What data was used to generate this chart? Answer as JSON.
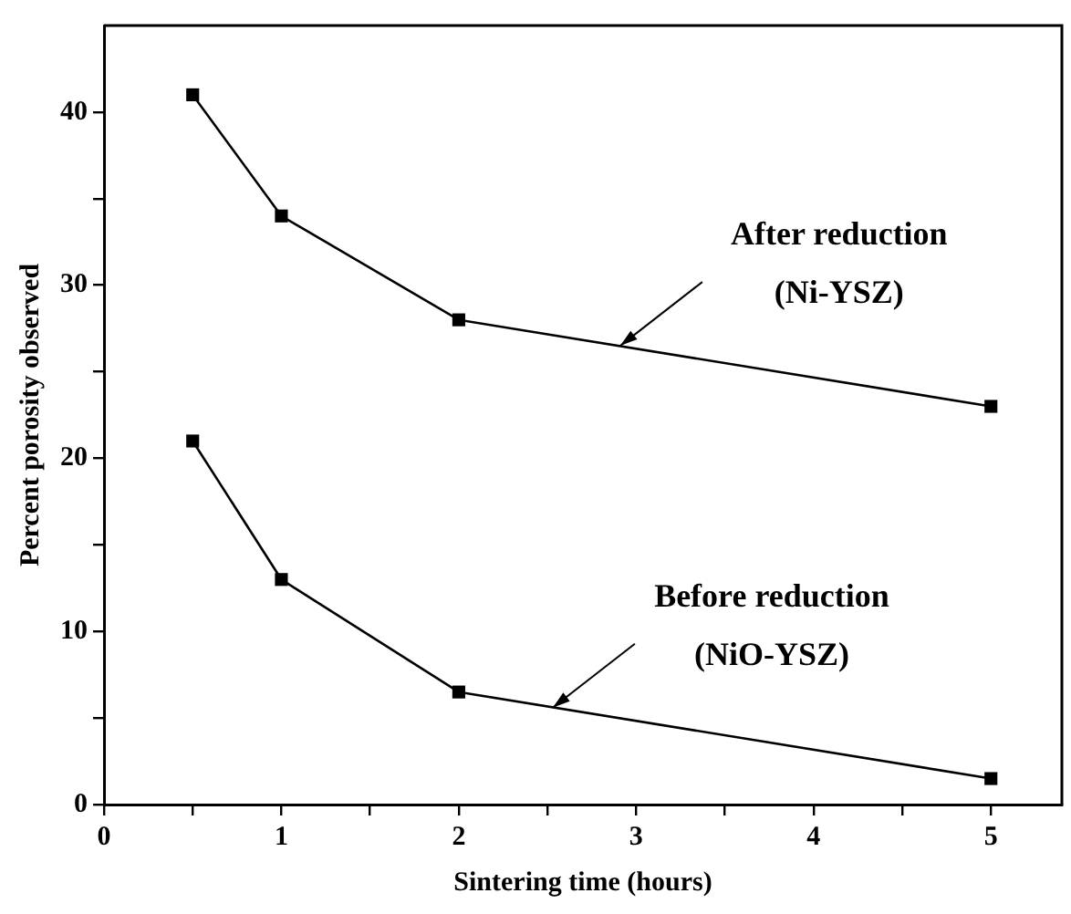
{
  "chart_data": {
    "type": "line",
    "xlabel": "Sintering time (hours)",
    "ylabel": "Percent porosity observed",
    "series": [
      {
        "x": [
          0.5,
          1,
          2,
          5
        ],
        "values": [
          41,
          34,
          28,
          23
        ],
        "color": "#000000"
      },
      {
        "x": [
          0.5,
          1,
          2,
          5
        ],
        "values": [
          21,
          13,
          6.5,
          1.5
        ],
        "color": "#000000"
      }
    ],
    "xlim": [
      0,
      5.4
    ],
    "xticks": [
      0,
      {
        "value": 0.5,
        "label": null
      },
      1,
      {
        "value": 1.5,
        "label": null
      },
      2,
      {
        "value": 2.5,
        "label": null
      },
      3,
      {
        "value": 3.5,
        "label": null
      },
      4,
      {
        "value": 4.5,
        "label": null
      },
      5
    ],
    "ylim": [
      0,
      45
    ],
    "yticks": [
      0,
      {
        "value": 5,
        "label": null
      },
      10,
      {
        "value": 15,
        "label": null
      },
      20,
      {
        "value": 25,
        "label": null
      },
      30,
      {
        "value": 35,
        "label": null
      },
      40
    ],
    "annotations": [
      {
        "text": "After reduction\n(Ni-YSZ)",
        "x": 2.91,
        "y": 26.5
      },
      {
        "text": "Before reduction\n(NiO-YSZ)",
        "x": 2.53,
        "y": 5.6
      }
    ],
    "grid": false,
    "legend": false,
    "marker": "square",
    "line_style": "solid"
  }
}
